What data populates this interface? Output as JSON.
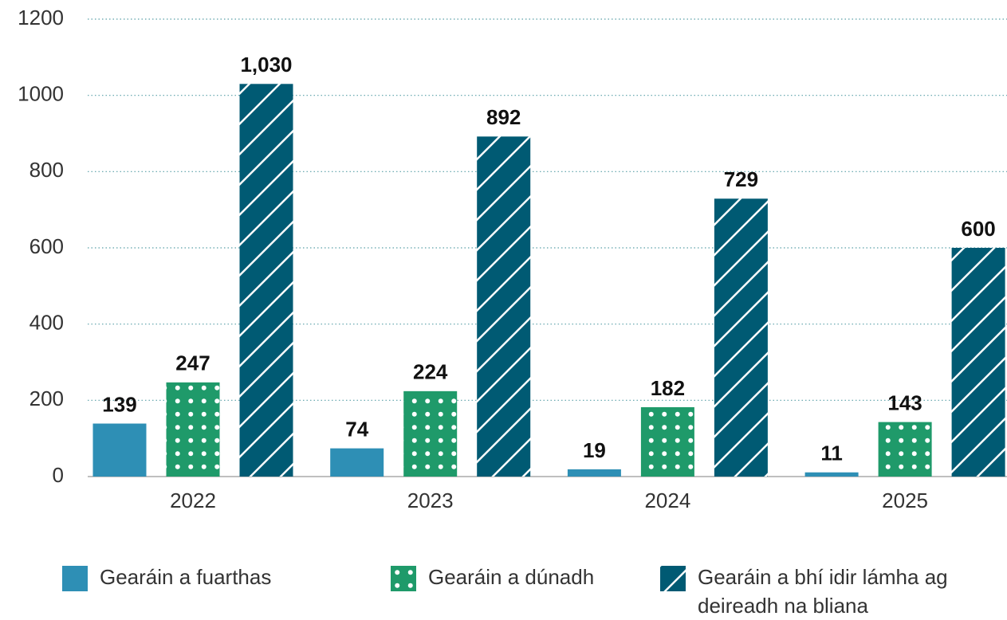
{
  "chart_data": {
    "type": "bar",
    "categories": [
      "2022",
      "2023",
      "2024",
      "2025"
    ],
    "series": [
      {
        "name": "Gearáin a fuarthas",
        "color": "#2e8fb5",
        "pattern": "solid",
        "values": [
          139,
          74,
          19,
          11
        ]
      },
      {
        "name": "Gearáin a dúnadh",
        "color": "#1f9a6a",
        "pattern": "dots",
        "values": [
          247,
          224,
          182,
          143
        ]
      },
      {
        "name": "Gearáin a bhí idir lámha ag deireadh na bliana",
        "color": "#005a73",
        "pattern": "hatch",
        "values": [
          1030,
          892,
          729,
          600
        ],
        "value_labels": [
          "1,030",
          "892",
          "729",
          "600"
        ]
      }
    ],
    "ylim": [
      0,
      1200
    ],
    "yticks": [
      0,
      200,
      400,
      600,
      800,
      1000,
      1200
    ],
    "grid": true,
    "legend": "bottom"
  }
}
